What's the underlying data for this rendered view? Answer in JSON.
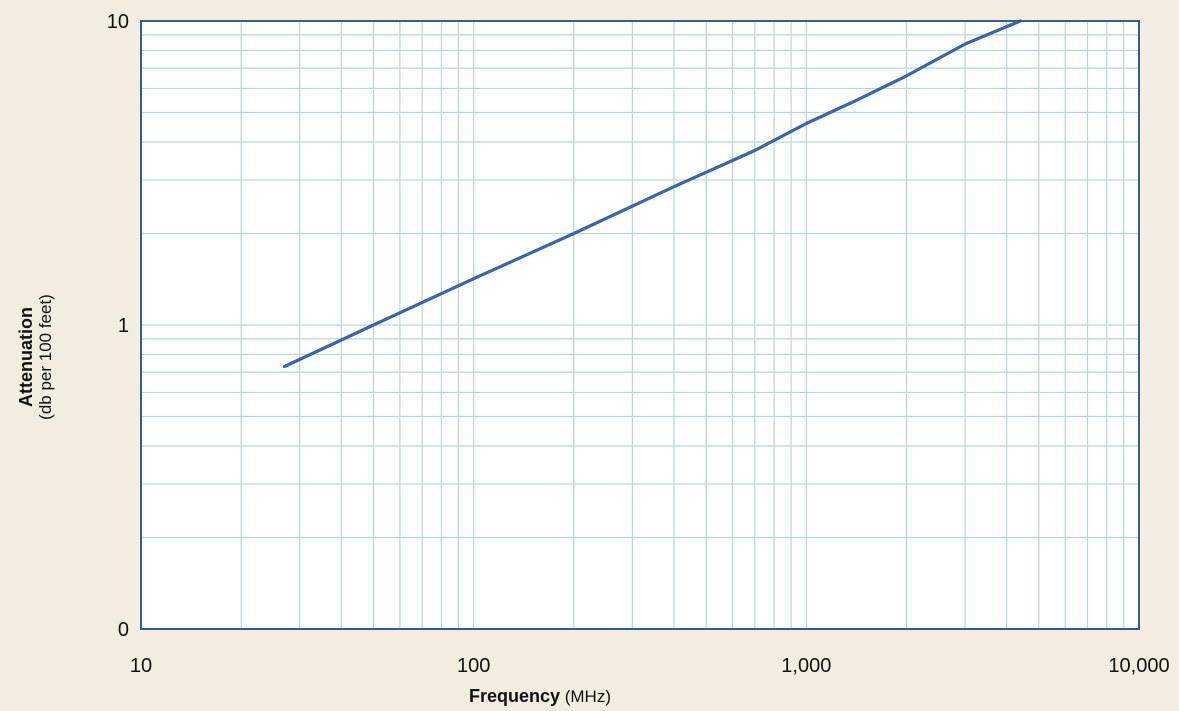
{
  "colors": {
    "background": "#f3ede0",
    "plot_background": "#ffffff",
    "frame": "#2f5d9a",
    "grid": "#bcd6d8",
    "line": "#3b66a3"
  },
  "chart_data": {
    "type": "line",
    "title": "",
    "x_scale": "log",
    "y_scale": "log",
    "xlim": [
      10,
      10000
    ],
    "ylim": [
      0.1,
      10
    ],
    "grid": true,
    "legend": "none",
    "xlabel": {
      "bold": "Frequency",
      "normal": " (MHz)"
    },
    "ylabel": {
      "bold": "Attenuation",
      "normal": "(db per 100 feet)"
    },
    "x_ticks": [
      {
        "value": 10,
        "label": "10"
      },
      {
        "value": 100,
        "label": "100"
      },
      {
        "value": 1000,
        "label": "1,000"
      },
      {
        "value": 10000,
        "label": "10,000"
      }
    ],
    "y_ticks": [
      {
        "value": 0.1,
        "label": "0"
      },
      {
        "value": 1,
        "label": "1"
      },
      {
        "value": 10,
        "label": "10"
      }
    ],
    "series": [
      {
        "x": [
          27,
          50,
          100,
          200,
          400,
          700,
          1000,
          1400,
          2000,
          3000,
          4400
        ],
        "y": [
          0.73,
          1.0,
          1.42,
          2.0,
          2.85,
          3.75,
          4.6,
          5.45,
          6.6,
          8.4,
          10
        ]
      }
    ]
  }
}
